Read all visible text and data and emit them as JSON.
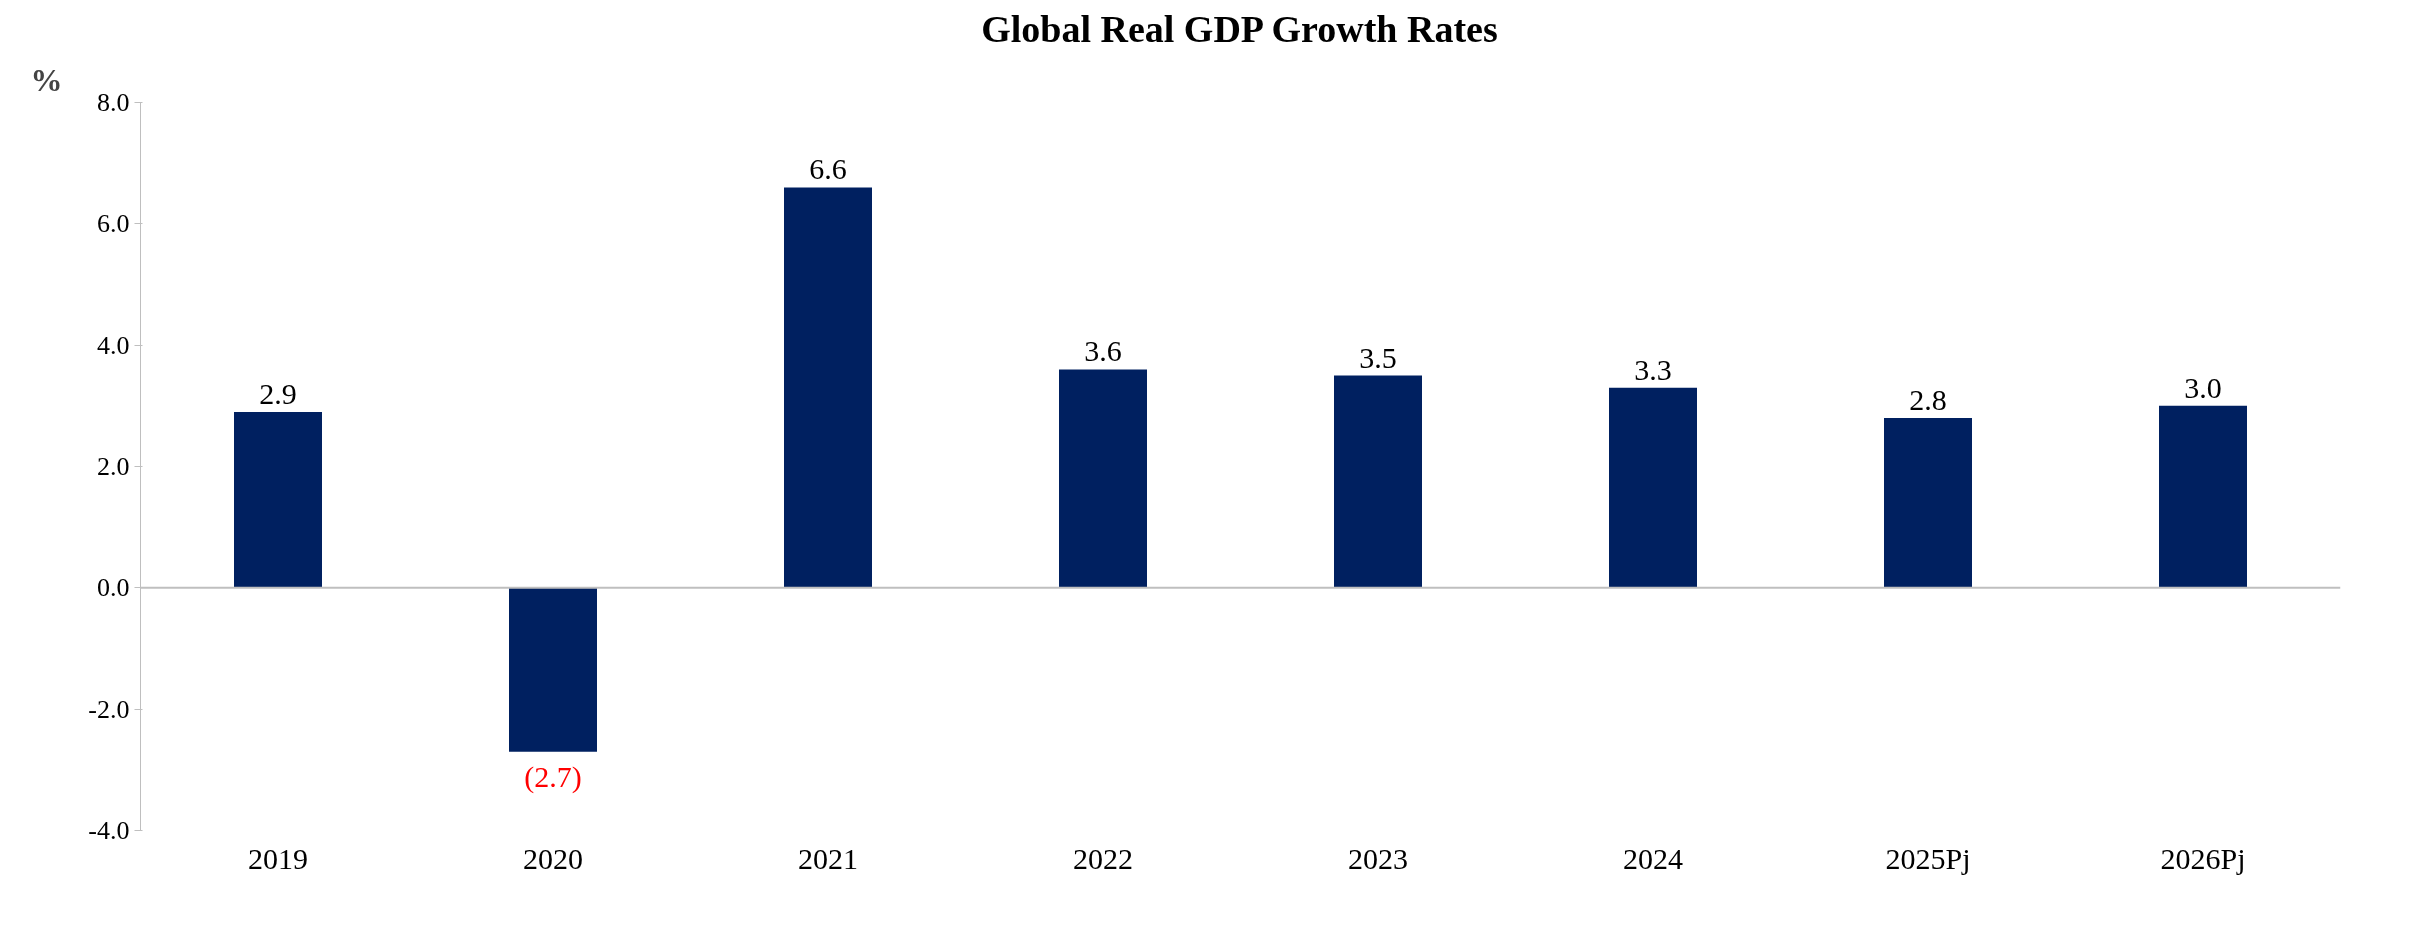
{
  "chart_data": {
    "type": "bar",
    "title": "Global Real GDP Growth Rates",
    "ylabel": "%",
    "categories": [
      "2019",
      "2020",
      "2021",
      "2022",
      "2023",
      "2024",
      "2025Pj",
      "2026Pj"
    ],
    "values": [
      2.9,
      -2.7,
      6.6,
      3.6,
      3.5,
      3.3,
      2.8,
      3.0
    ],
    "value_labels": [
      "2.9",
      "(2.7)",
      "6.6",
      "3.6",
      "3.5",
      "3.3",
      "2.8",
      "3.0"
    ],
    "color": "#002060",
    "ylim": [
      -4,
      8
    ],
    "yticks": [
      {
        "value": -4,
        "label": "-4.0"
      },
      {
        "value": -2,
        "label": "-2.0"
      },
      {
        "value": 0,
        "label": "0.0"
      },
      {
        "value": 2,
        "label": "2.0"
      },
      {
        "value": 4,
        "label": "4.0"
      },
      {
        "value": 6,
        "label": "6.0"
      },
      {
        "value": 8,
        "label": "8.0"
      }
    ]
  }
}
